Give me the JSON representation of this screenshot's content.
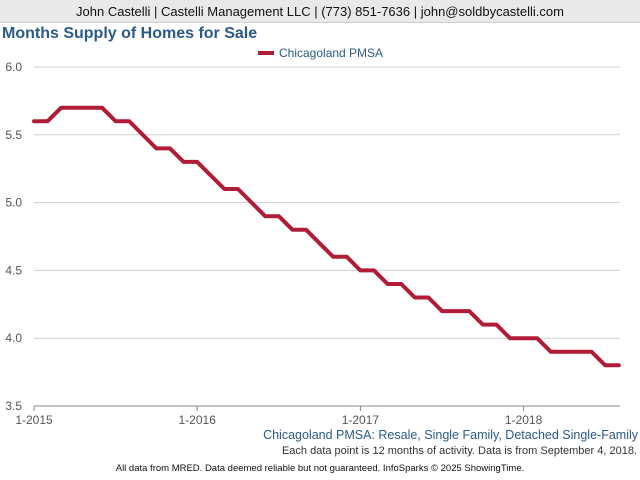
{
  "header": {
    "contact": "John Castelli | Castelli Management LLC | (773) 851-7636 | john@soldbycastelli.com"
  },
  "footer": {
    "series_description": "Chicagoland PMSA: Resale, Single Family, Detached Single-Family",
    "data_note": "Each data point is 12 months of activity. Data is from September 4, 2018.",
    "disclaimer": "All data from MRED. Data deemed reliable but not guaranteed. InfoSparks © 2025 ShowingTime."
  },
  "chart_data": {
    "type": "line",
    "title": "Months Supply of Homes for Sale",
    "xlabel": "",
    "ylabel": "",
    "ylim": [
      3.5,
      6.0
    ],
    "y_ticks": [
      "3.5",
      "4.0",
      "4.5",
      "5.0",
      "5.5",
      "6.0"
    ],
    "x_ticks": [
      "1-2015",
      "1-2016",
      "1-2017",
      "1-2018"
    ],
    "x": [
      "1-2015",
      "2-2015",
      "3-2015",
      "4-2015",
      "5-2015",
      "6-2015",
      "7-2015",
      "8-2015",
      "9-2015",
      "10-2015",
      "11-2015",
      "12-2015",
      "1-2016",
      "2-2016",
      "3-2016",
      "4-2016",
      "5-2016",
      "6-2016",
      "7-2016",
      "8-2016",
      "9-2016",
      "10-2016",
      "11-2016",
      "12-2016",
      "1-2017",
      "2-2017",
      "3-2017",
      "4-2017",
      "5-2017",
      "6-2017",
      "7-2017",
      "8-2017",
      "9-2017",
      "10-2017",
      "11-2017",
      "12-2017",
      "1-2018",
      "2-2018",
      "3-2018",
      "4-2018",
      "5-2018",
      "6-2018",
      "7-2018",
      "8-2018"
    ],
    "grid": true,
    "legend_position": "top-center",
    "series": [
      {
        "name": "Chicagoland PMSA",
        "color": "#b01c36",
        "values": [
          5.6,
          5.6,
          5.7,
          5.7,
          5.7,
          5.7,
          5.6,
          5.6,
          5.5,
          5.4,
          5.4,
          5.3,
          5.3,
          5.2,
          5.1,
          5.1,
          5.0,
          4.9,
          4.9,
          4.8,
          4.8,
          4.7,
          4.6,
          4.6,
          4.5,
          4.5,
          4.4,
          4.4,
          4.3,
          4.3,
          4.2,
          4.2,
          4.2,
          4.1,
          4.1,
          4.0,
          4.0,
          4.0,
          3.9,
          3.9,
          3.9,
          3.9,
          3.8,
          3.8
        ]
      }
    ]
  }
}
